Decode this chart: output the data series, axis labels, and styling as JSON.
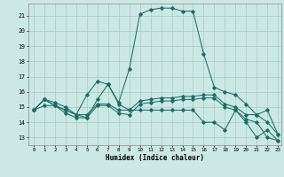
{
  "xlabel": "Humidex (Indice chaleur)",
  "bg_color": "#cce8e4",
  "line_color": "#1a6e64",
  "grid_color": "#aacfca",
  "xlim": [
    -0.5,
    23.3
  ],
  "ylim": [
    12.5,
    21.8
  ],
  "xticks": [
    0,
    1,
    2,
    3,
    4,
    5,
    6,
    7,
    8,
    9,
    10,
    11,
    12,
    13,
    14,
    15,
    16,
    17,
    18,
    19,
    20,
    21,
    22,
    23
  ],
  "yticks": [
    13,
    14,
    15,
    16,
    17,
    18,
    19,
    20,
    21
  ],
  "series1_x": [
    0,
    1,
    2,
    3,
    4,
    5,
    6,
    7,
    8,
    9,
    10,
    11,
    12,
    13,
    14,
    15,
    16,
    17,
    18,
    19,
    20,
    21,
    22,
    23
  ],
  "series1": [
    14.8,
    15.1,
    15.1,
    14.6,
    14.3,
    14.3,
    15.1,
    15.1,
    14.6,
    14.5,
    15.2,
    15.3,
    15.4,
    15.4,
    15.5,
    15.5,
    15.6,
    15.6,
    15.0,
    14.8,
    14.2,
    14.0,
    13.0,
    12.8
  ],
  "series2_x": [
    0,
    1,
    2,
    3,
    4,
    5,
    6,
    7,
    8,
    9,
    10,
    11,
    12,
    13,
    14,
    15,
    16,
    17,
    18,
    19,
    20,
    21,
    22,
    23
  ],
  "series2": [
    14.8,
    15.5,
    15.1,
    14.8,
    14.5,
    14.5,
    15.2,
    15.2,
    14.8,
    14.8,
    15.4,
    15.5,
    15.6,
    15.6,
    15.7,
    15.7,
    15.8,
    15.8,
    15.2,
    15.0,
    14.5,
    14.5,
    14.0,
    13.2
  ],
  "series3_x": [
    0,
    1,
    2,
    3,
    4,
    5,
    6,
    7,
    8,
    9,
    10,
    11,
    12,
    13,
    14,
    15,
    16,
    17,
    18,
    19,
    20,
    21,
    22,
    23
  ],
  "series3": [
    14.8,
    15.5,
    15.3,
    15.0,
    14.5,
    15.8,
    16.7,
    16.5,
    15.3,
    17.5,
    21.1,
    21.4,
    21.5,
    21.5,
    21.3,
    21.3,
    18.5,
    16.3,
    16.0,
    15.8,
    15.2,
    14.5,
    14.8,
    13.2
  ],
  "series4_x": [
    0,
    1,
    2,
    3,
    4,
    5,
    6,
    7,
    8,
    9,
    10,
    11,
    12,
    13,
    14,
    15,
    16,
    17,
    18,
    19,
    20,
    21,
    22,
    23
  ],
  "series4": [
    14.8,
    15.5,
    15.1,
    14.8,
    14.5,
    14.3,
    15.5,
    16.5,
    15.2,
    14.8,
    14.8,
    14.8,
    14.8,
    14.8,
    14.8,
    14.8,
    14.0,
    14.0,
    13.5,
    14.8,
    14.0,
    13.0,
    13.5,
    12.8
  ]
}
